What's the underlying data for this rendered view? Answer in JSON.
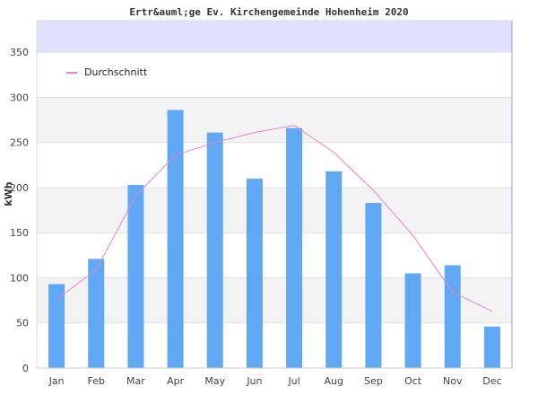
{
  "chart_data": {
    "type": "bar",
    "title": "Ertr&auml;ge Ev. Kirchengemeinde Hohenheim 2020",
    "xlabel": "",
    "ylabel": "kWh",
    "ylim": [
      0,
      385
    ],
    "yticks": [
      0,
      50,
      100,
      150,
      200,
      250,
      300,
      350
    ],
    "grid": true,
    "legend_position": "top-left",
    "categories": [
      "Jan",
      "Feb",
      "Mar",
      "Apr",
      "May",
      "Jun",
      "Jul",
      "Aug",
      "Sep",
      "Oct",
      "Nov",
      "Dec"
    ],
    "values": [
      93,
      121,
      203,
      286,
      261,
      210,
      266,
      218,
      183,
      105,
      114,
      46
    ],
    "series": [
      {
        "name": "Durchschnitt",
        "type": "line",
        "values": [
          76,
          109,
          191,
          236,
          250,
          261,
          269,
          239,
          197,
          147,
          84,
          63
        ]
      }
    ],
    "colors": {
      "bar": "#60a8f4",
      "line": "#f080c0",
      "band": "#f3f3f3",
      "top_band": "#e0e0ff"
    }
  }
}
